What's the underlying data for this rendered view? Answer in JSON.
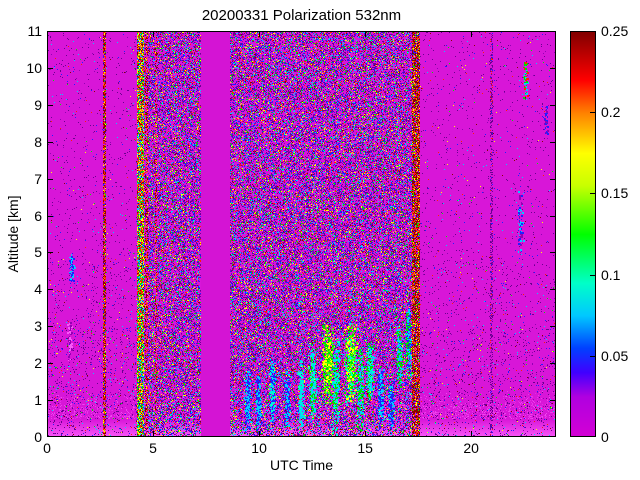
{
  "chart_data": {
    "type": "heatmap",
    "title": "20200331 Polarization 532nm",
    "xlabel": "UTC Time",
    "ylabel": "Altitude [km]",
    "xlim": [
      0,
      24
    ],
    "ylim": [
      0,
      11
    ],
    "xtick_values": [
      0,
      5,
      10,
      15,
      20
    ],
    "xtick_labels": [
      "0",
      "5",
      "10",
      "15",
      "20"
    ],
    "ytick_values": [
      0,
      1,
      2,
      3,
      4,
      5,
      6,
      7,
      8,
      9,
      10,
      11
    ],
    "ytick_labels": [
      "0",
      "1",
      "2",
      "3",
      "4",
      "5",
      "6",
      "7",
      "8",
      "9",
      "10",
      "11"
    ],
    "colorbar": {
      "min": 0,
      "max": 0.25,
      "tick_values": [
        0,
        0.05,
        0.1,
        0.15,
        0.2,
        0.25
      ],
      "tick_labels": [
        "0",
        "0.05",
        "0.1",
        "0.15",
        "0.2",
        "0.25"
      ],
      "position": "right"
    },
    "grid": false,
    "colormap_stops": [
      [
        0.0,
        "#d400d4"
      ],
      [
        0.1,
        "#b000e0"
      ],
      [
        0.16,
        "#4000ff"
      ],
      [
        0.22,
        "#0040ff"
      ],
      [
        0.3,
        "#00c8ff"
      ],
      [
        0.38,
        "#00ffc8"
      ],
      [
        0.5,
        "#00ff00"
      ],
      [
        0.62,
        "#c8ff00"
      ],
      [
        0.7,
        "#ffff00"
      ],
      [
        0.8,
        "#ff8000"
      ],
      [
        0.88,
        "#ff0000"
      ],
      [
        1.0,
        "#800000"
      ]
    ],
    "palette": {
      "base": "#d816d8",
      "basegap": "#d414d4",
      "bottomglow": "#ff64ff",
      "pink": "#f858f8",
      "darkpurple": "#6a0090",
      "purple": "#9400b4",
      "blue": "#2020ff",
      "cyan": "#00d0ff",
      "teal": "#00ffc8",
      "green": "#00e000",
      "brightgreen": "#40ff00",
      "yellow": "#ffff00",
      "orange": "#ff8000",
      "red": "#ff2000",
      "darkred": "#8b0000"
    },
    "noise_kinds": {
      "sparse": [
        [
          "darkpurple",
          50
        ],
        [
          "purple",
          15
        ],
        [
          "blue",
          12
        ],
        [
          "cyan",
          8
        ],
        [
          "green",
          4
        ],
        [
          "red",
          5
        ],
        [
          "yellow",
          3
        ],
        [
          "darkred",
          3
        ]
      ],
      "dense": [
        [
          "darkpurple",
          30
        ],
        [
          "purple",
          12
        ],
        [
          "blue",
          18
        ],
        [
          "cyan",
          12
        ],
        [
          "green",
          9
        ],
        [
          "yellow",
          7
        ],
        [
          "red",
          8
        ],
        [
          "darkred",
          4
        ]
      ],
      "stripe_red": [
        [
          "darkred",
          40
        ],
        [
          "red",
          22
        ],
        [
          "orange",
          10
        ],
        [
          "purple",
          10
        ],
        [
          "blue",
          6
        ],
        [
          "green",
          6
        ],
        [
          "yellow",
          6
        ]
      ],
      "stripe_hot": [
        [
          "red",
          18
        ],
        [
          "orange",
          12
        ],
        [
          "yellow",
          16
        ],
        [
          "green",
          18
        ],
        [
          "cyan",
          14
        ],
        [
          "blue",
          10
        ],
        [
          "darkred",
          12
        ]
      ],
      "stripe_faint": [
        [
          "darkpurple",
          60
        ],
        [
          "purple",
          20
        ],
        [
          "red",
          10
        ],
        [
          "blue",
          10
        ]
      ],
      "gap": []
    },
    "noise_regions": [
      {
        "x0": 0.0,
        "x1": 2.6,
        "kind": "sparse",
        "density": 0.055
      },
      {
        "x0": 2.78,
        "x1": 4.2,
        "kind": "sparse",
        "density": 0.055
      },
      {
        "x0": 17.55,
        "x1": 24.0,
        "kind": "sparse",
        "density": 0.05
      },
      {
        "x0": 4.55,
        "x1": 7.25,
        "kind": "dense",
        "density": 0.5
      },
      {
        "x0": 8.6,
        "x1": 17.2,
        "kind": "dense",
        "density": 0.5
      },
      {
        "x0": 2.6,
        "x1": 2.78,
        "kind": "stripe_red",
        "density": 0.85
      },
      {
        "x0": 4.2,
        "x1": 4.55,
        "kind": "stripe_hot",
        "density": 0.95
      },
      {
        "x0": 4.6,
        "x1": 4.72,
        "kind": "stripe_red",
        "density": 0.6
      },
      {
        "x0": 5.08,
        "x1": 5.18,
        "kind": "stripe_red",
        "density": 0.5
      },
      {
        "x0": 7.25,
        "x1": 8.6,
        "kind": "gap",
        "density": 0.0
      },
      {
        "x0": 17.2,
        "x1": 17.55,
        "kind": "stripe_red",
        "density": 0.9
      },
      {
        "x0": 20.88,
        "x1": 21.02,
        "kind": "stripe_faint",
        "density": 0.45
      }
    ],
    "features": [
      {
        "x": 9.45,
        "alt": 1.0,
        "rx": 0.08,
        "ry": 0.45,
        "n": 260,
        "colors": [
          "cyan",
          "blue"
        ]
      },
      {
        "x": 9.95,
        "alt": 0.9,
        "rx": 0.07,
        "ry": 0.4,
        "n": 220,
        "colors": [
          "cyan",
          "blue"
        ]
      },
      {
        "x": 10.6,
        "alt": 1.2,
        "rx": 0.08,
        "ry": 0.5,
        "n": 260,
        "colors": [
          "cyan",
          "blue",
          "teal"
        ]
      },
      {
        "x": 11.3,
        "alt": 1.0,
        "rx": 0.08,
        "ry": 0.45,
        "n": 240,
        "colors": [
          "cyan",
          "blue"
        ]
      },
      {
        "x": 11.95,
        "alt": 1.2,
        "rx": 0.08,
        "ry": 0.5,
        "n": 240,
        "colors": [
          "cyan",
          "teal"
        ]
      },
      {
        "x": 12.5,
        "alt": 1.5,
        "rx": 0.1,
        "ry": 0.55,
        "n": 300,
        "colors": [
          "teal",
          "green",
          "cyan"
        ]
      },
      {
        "x": 13.2,
        "alt": 2.0,
        "rx": 0.14,
        "ry": 0.6,
        "n": 520,
        "colors": [
          "brightgreen",
          "green",
          "yellow"
        ]
      },
      {
        "x": 13.6,
        "alt": 1.4,
        "rx": 0.1,
        "ry": 0.7,
        "n": 350,
        "colors": [
          "green",
          "teal",
          "cyan"
        ]
      },
      {
        "x": 14.3,
        "alt": 2.0,
        "rx": 0.16,
        "ry": 0.6,
        "n": 560,
        "colors": [
          "brightgreen",
          "green",
          "yellow",
          "teal"
        ]
      },
      {
        "x": 14.75,
        "alt": 1.3,
        "rx": 0.1,
        "ry": 0.6,
        "n": 300,
        "colors": [
          "green",
          "cyan"
        ]
      },
      {
        "x": 15.2,
        "alt": 1.8,
        "rx": 0.1,
        "ry": 0.5,
        "n": 280,
        "colors": [
          "green",
          "teal",
          "cyan"
        ]
      },
      {
        "x": 15.7,
        "alt": 1.1,
        "rx": 0.08,
        "ry": 0.45,
        "n": 220,
        "colors": [
          "cyan",
          "blue"
        ]
      },
      {
        "x": 16.2,
        "alt": 0.9,
        "rx": 0.07,
        "ry": 0.4,
        "n": 180,
        "colors": [
          "cyan",
          "blue"
        ]
      },
      {
        "x": 16.6,
        "alt": 2.2,
        "rx": 0.08,
        "ry": 0.5,
        "n": 220,
        "colors": [
          "green",
          "cyan"
        ]
      },
      {
        "x": 17.0,
        "alt": 2.6,
        "rx": 0.08,
        "ry": 0.6,
        "n": 240,
        "colors": [
          "cyan",
          "green",
          "blue"
        ]
      },
      {
        "x": 1.15,
        "alt": 4.6,
        "rx": 0.06,
        "ry": 0.25,
        "n": 90,
        "colors": [
          "cyan",
          "blue"
        ]
      },
      {
        "x": 1.05,
        "alt": 2.6,
        "rx": 0.06,
        "ry": 0.3,
        "n": 80,
        "colors": [
          "pink",
          "purple"
        ]
      },
      {
        "x": 22.55,
        "alt": 9.7,
        "rx": 0.06,
        "ry": 0.3,
        "n": 90,
        "colors": [
          "cyan",
          "green",
          "red"
        ]
      },
      {
        "x": 22.3,
        "alt": 5.8,
        "rx": 0.07,
        "ry": 0.5,
        "n": 110,
        "colors": [
          "purple",
          "blue",
          "cyan"
        ]
      },
      {
        "x": 23.5,
        "alt": 8.6,
        "rx": 0.05,
        "ry": 0.2,
        "n": 50,
        "colors": [
          "purple",
          "blue"
        ]
      }
    ]
  }
}
